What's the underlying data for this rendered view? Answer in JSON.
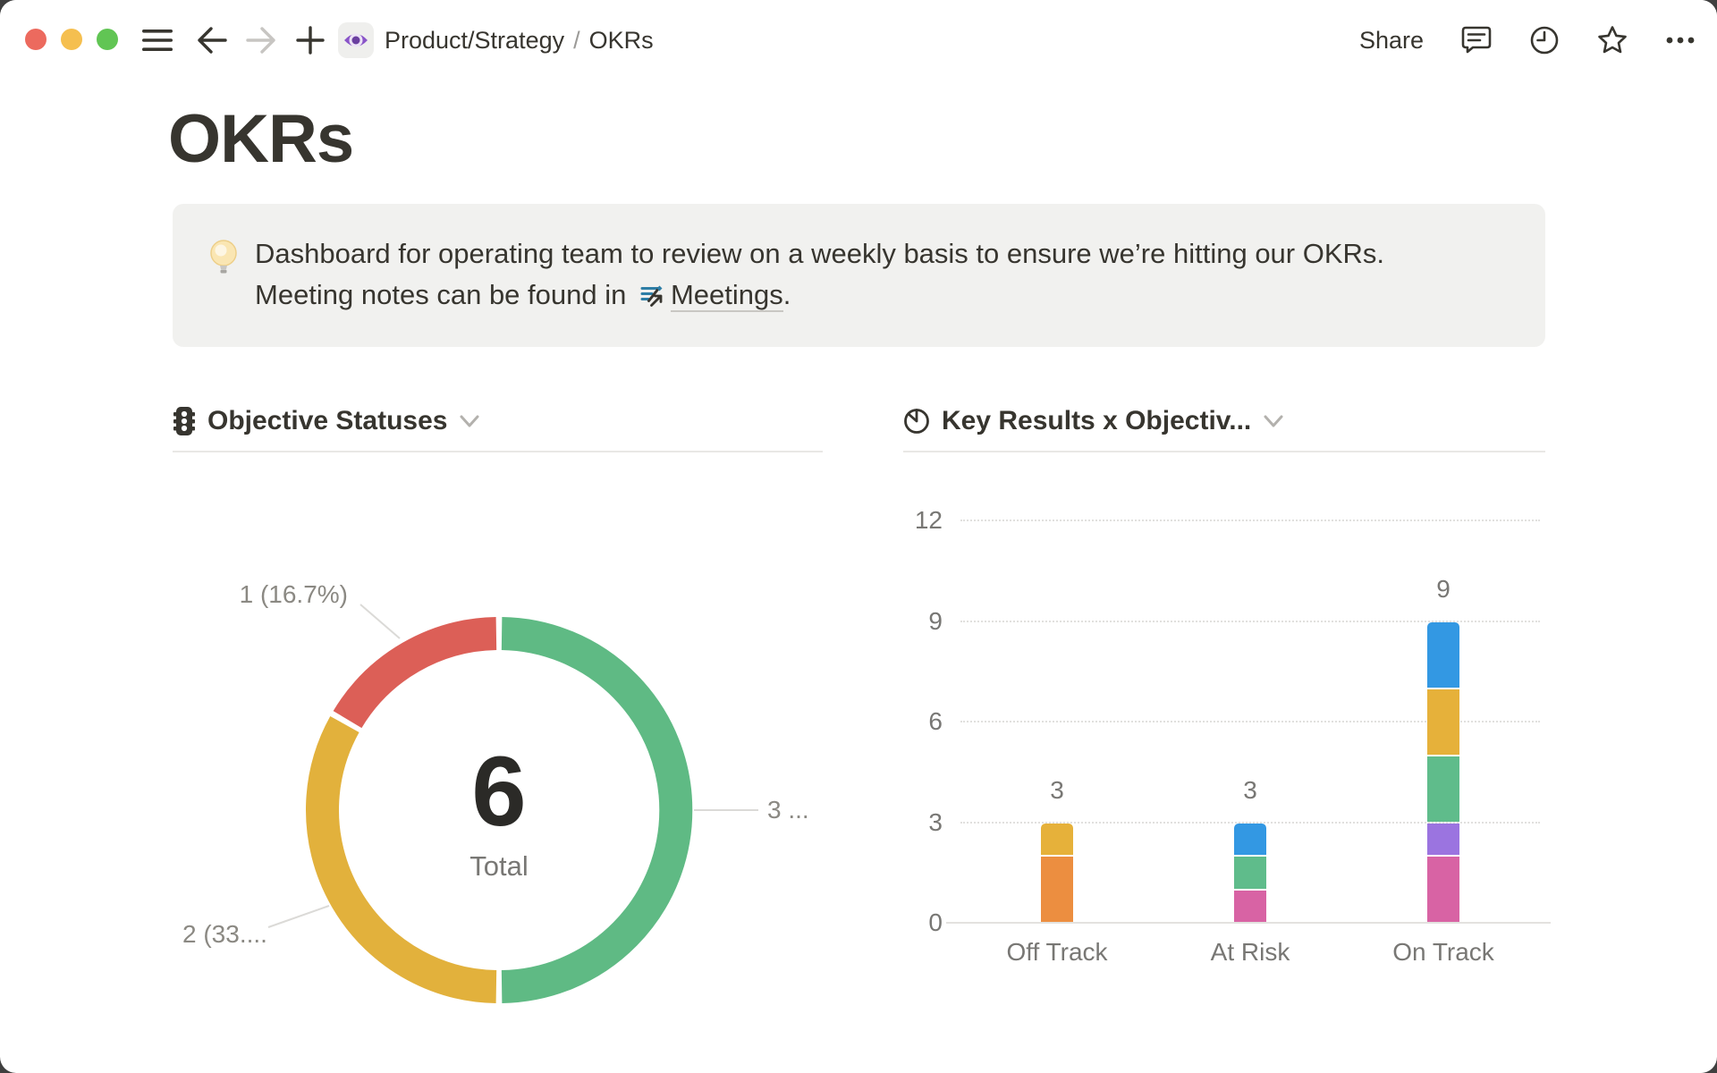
{
  "window": {
    "controls": [
      "close",
      "minimize",
      "zoom"
    ],
    "nav_icons": [
      "hamburger-menu-icon",
      "back-arrow-icon",
      "forward-arrow-icon",
      "plus-icon"
    ],
    "breadcrumb": {
      "page_icon": "purple-eye-icon",
      "segments": [
        "Product/Strategy",
        "OKRs"
      ],
      "separator": "/"
    },
    "share_label": "Share",
    "right_icons": [
      "comment-icon",
      "clock-icon",
      "star-icon",
      "ellipsis-icon"
    ]
  },
  "page": {
    "title": "OKRs",
    "callout": {
      "icon": "lightbulb-icon",
      "line1": "Dashboard for operating team to review on a weekly basis to ensure we’re hitting our OKRs.",
      "line2_prefix": "Meeting notes can be found in ",
      "link_icon": "meetings-page-icon",
      "link_text": "Meetings",
      "line2_suffix": "."
    }
  },
  "charts": [
    {
      "title": "Objective Statuses",
      "header_icon": "traffic-light-icon",
      "chart_data": {
        "type": "pie",
        "subtype": "donut",
        "total": 6,
        "total_label": "Total",
        "segments": [
          {
            "label": "1 (16.7%)",
            "value": 1,
            "percent": 16.7,
            "color": "#DC5F57"
          },
          {
            "label": "2 (33....",
            "value": 2,
            "percent": 33.3,
            "color": "#E2B13C"
          },
          {
            "label": "3 ...",
            "value": 3,
            "percent": 50.0,
            "color": "#5FBA84"
          }
        ]
      }
    },
    {
      "title": "Key Results x Objectiv...",
      "header_icon": "pie-chart-icon",
      "chart_data": {
        "type": "bar",
        "stacked": true,
        "categories": [
          "Off Track",
          "At Risk",
          "On Track"
        ],
        "totals": [
          3,
          3,
          9
        ],
        "y_ticks": [
          0,
          3,
          6,
          9,
          12
        ],
        "ylim": [
          0,
          12
        ],
        "grid": "dotted",
        "stacks": [
          [
            {
              "color": "#EC8E40",
              "value": 2
            },
            {
              "color": "#E6B13A",
              "value": 1
            }
          ],
          [
            {
              "color": "#D863A4",
              "value": 1
            },
            {
              "color": "#5FBC8B",
              "value": 1
            },
            {
              "color": "#3398E3",
              "value": 1
            }
          ],
          [
            {
              "color": "#D863A4",
              "value": 2
            },
            {
              "color": "#9B74E0",
              "value": 1
            },
            {
              "color": "#5FBC8B",
              "value": 2
            },
            {
              "color": "#E6B13A",
              "value": 2
            },
            {
              "color": "#3398E3",
              "value": 2
            }
          ]
        ]
      }
    }
  ]
}
